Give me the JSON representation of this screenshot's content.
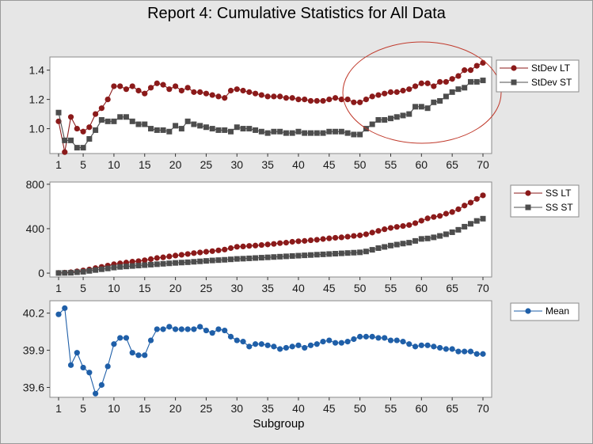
{
  "title": "Report 4: Cumulative Statistics for All Data",
  "chart_data": [
    {
      "type": "line",
      "x": [
        1,
        2,
        3,
        4,
        5,
        6,
        7,
        8,
        9,
        10,
        11,
        12,
        13,
        14,
        15,
        16,
        17,
        18,
        19,
        20,
        21,
        22,
        23,
        24,
        25,
        26,
        27,
        28,
        29,
        30,
        31,
        32,
        33,
        34,
        35,
        36,
        37,
        38,
        39,
        40,
        41,
        42,
        43,
        44,
        45,
        46,
        47,
        48,
        49,
        50,
        51,
        52,
        53,
        54,
        55,
        56,
        57,
        58,
        59,
        60,
        61,
        62,
        63,
        64,
        65,
        66,
        67,
        68,
        69,
        70
      ],
      "xticks": [
        "1",
        "5",
        "10",
        "15",
        "20",
        "25",
        "30",
        "35",
        "40",
        "45",
        "50",
        "55",
        "60",
        "65",
        "70"
      ],
      "yticks": [
        "1.0",
        "1.2",
        "1.4"
      ],
      "ylim": [
        0.83,
        1.49
      ],
      "legend": "right",
      "annotation": "ellipse highlighting subgroups 49-70",
      "series": [
        {
          "name": "StDev LT",
          "color": "#8b1a1a",
          "marker": "circle",
          "values": [
            1.05,
            0.84,
            1.08,
            1.0,
            0.98,
            1.01,
            1.1,
            1.14,
            1.2,
            1.29,
            1.29,
            1.27,
            1.29,
            1.26,
            1.24,
            1.28,
            1.31,
            1.3,
            1.27,
            1.29,
            1.26,
            1.28,
            1.25,
            1.25,
            1.24,
            1.23,
            1.22,
            1.21,
            1.26,
            1.27,
            1.26,
            1.25,
            1.24,
            1.23,
            1.22,
            1.22,
            1.22,
            1.21,
            1.21,
            1.2,
            1.2,
            1.19,
            1.19,
            1.19,
            1.2,
            1.21,
            1.2,
            1.2,
            1.18,
            1.18,
            1.2,
            1.22,
            1.23,
            1.24,
            1.25,
            1.25,
            1.26,
            1.27,
            1.29,
            1.31,
            1.31,
            1.29,
            1.32,
            1.32,
            1.34,
            1.36,
            1.4,
            1.4,
            1.43,
            1.45
          ]
        },
        {
          "name": "StDev ST",
          "color": "#4d4d4d",
          "marker": "square",
          "values": [
            1.11,
            0.92,
            0.92,
            0.87,
            0.87,
            0.93,
            0.99,
            1.06,
            1.05,
            1.05,
            1.08,
            1.08,
            1.05,
            1.03,
            1.03,
            1.0,
            0.99,
            0.99,
            0.98,
            1.02,
            1.0,
            1.05,
            1.03,
            1.02,
            1.01,
            1.0,
            0.99,
            0.99,
            0.98,
            1.01,
            1.0,
            1.0,
            0.99,
            0.98,
            0.97,
            0.98,
            0.98,
            0.97,
            0.97,
            0.98,
            0.97,
            0.97,
            0.97,
            0.97,
            0.98,
            0.98,
            0.98,
            0.97,
            0.96,
            0.96,
            1.0,
            1.03,
            1.06,
            1.06,
            1.07,
            1.08,
            1.09,
            1.1,
            1.15,
            1.15,
            1.14,
            1.18,
            1.19,
            1.22,
            1.25,
            1.27,
            1.28,
            1.32,
            1.32,
            1.33
          ]
        }
      ]
    },
    {
      "type": "line",
      "x": [
        1,
        2,
        3,
        4,
        5,
        6,
        7,
        8,
        9,
        10,
        11,
        12,
        13,
        14,
        15,
        16,
        17,
        18,
        19,
        20,
        21,
        22,
        23,
        24,
        25,
        26,
        27,
        28,
        29,
        30,
        31,
        32,
        33,
        34,
        35,
        36,
        37,
        38,
        39,
        40,
        41,
        42,
        43,
        44,
        45,
        46,
        47,
        48,
        49,
        50,
        51,
        52,
        53,
        54,
        55,
        56,
        57,
        58,
        59,
        60,
        61,
        62,
        63,
        64,
        65,
        66,
        67,
        68,
        69,
        70
      ],
      "xticks": [
        "1",
        "5",
        "10",
        "15",
        "20",
        "25",
        "30",
        "35",
        "40",
        "45",
        "50",
        "55",
        "60",
        "65",
        "70"
      ],
      "yticks": [
        "0",
        "400",
        "800"
      ],
      "ylim": [
        -35,
        820
      ],
      "legend": "right",
      "series": [
        {
          "name": "SS LT",
          "color": "#8b1a1a",
          "marker": "circle",
          "values": [
            2,
            4,
            8,
            16,
            24,
            33,
            45,
            56,
            68,
            80,
            88,
            95,
            103,
            108,
            116,
            126,
            136,
            142,
            150,
            158,
            165,
            172,
            180,
            186,
            192,
            198,
            205,
            212,
            225,
            237,
            240,
            245,
            248,
            253,
            258,
            263,
            270,
            274,
            282,
            287,
            290,
            296,
            300,
            307,
            313,
            318,
            322,
            328,
            335,
            340,
            350,
            365,
            380,
            395,
            407,
            416,
            424,
            433,
            450,
            472,
            493,
            505,
            515,
            535,
            550,
            575,
            608,
            635,
            668,
            700
          ]
        },
        {
          "name": "SS ST",
          "color": "#4d4d4d",
          "marker": "square",
          "values": [
            1,
            2,
            3,
            8,
            12,
            20,
            28,
            35,
            42,
            50,
            56,
            60,
            64,
            68,
            72,
            76,
            80,
            84,
            88,
            92,
            95,
            98,
            102,
            106,
            110,
            114,
            117,
            120,
            124,
            128,
            130,
            133,
            136,
            139,
            142,
            145,
            148,
            151,
            154,
            157,
            160,
            163,
            166,
            169,
            172,
            175,
            178,
            181,
            184,
            187,
            195,
            210,
            225,
            236,
            248,
            257,
            266,
            274,
            290,
            308,
            312,
            322,
            335,
            350,
            368,
            390,
            418,
            444,
            470,
            490
          ]
        }
      ]
    },
    {
      "type": "line",
      "x": [
        1,
        2,
        3,
        4,
        5,
        6,
        7,
        8,
        9,
        10,
        11,
        12,
        13,
        14,
        15,
        16,
        17,
        18,
        19,
        20,
        21,
        22,
        23,
        24,
        25,
        26,
        27,
        28,
        29,
        30,
        31,
        32,
        33,
        34,
        35,
        36,
        37,
        38,
        39,
        40,
        41,
        42,
        43,
        44,
        45,
        46,
        47,
        48,
        49,
        50,
        51,
        52,
        53,
        54,
        55,
        56,
        57,
        58,
        59,
        60,
        61,
        62,
        63,
        64,
        65,
        66,
        67,
        68,
        69,
        70
      ],
      "xticks": [
        "1",
        "5",
        "10",
        "15",
        "20",
        "25",
        "30",
        "35",
        "40",
        "45",
        "50",
        "55",
        "60",
        "65",
        "70"
      ],
      "yticks": [
        "39.6",
        "39.9",
        "40.2"
      ],
      "ylim": [
        39.52,
        40.3
      ],
      "xlabel": "Subgroup",
      "legend": "right",
      "series": [
        {
          "name": "Mean",
          "color": "#1f5fa8",
          "marker": "circle",
          "values": [
            40.19,
            40.24,
            39.78,
            39.88,
            39.76,
            39.72,
            39.55,
            39.62,
            39.77,
            39.95,
            40.0,
            40.0,
            39.88,
            39.86,
            39.86,
            39.98,
            40.07,
            40.07,
            40.09,
            40.07,
            40.07,
            40.07,
            40.07,
            40.09,
            40.06,
            40.04,
            40.07,
            40.06,
            40.01,
            39.98,
            39.97,
            39.93,
            39.95,
            39.95,
            39.94,
            39.93,
            39.91,
            39.92,
            39.93,
            39.94,
            39.92,
            39.94,
            39.95,
            39.97,
            39.98,
            39.96,
            39.96,
            39.97,
            39.99,
            40.01,
            40.01,
            40.01,
            40.0,
            40.0,
            39.98,
            39.98,
            39.97,
            39.95,
            39.93,
            39.94,
            39.94,
            39.93,
            39.92,
            39.91,
            39.91,
            39.89,
            39.89,
            39.89,
            39.87,
            39.87
          ]
        }
      ]
    }
  ]
}
